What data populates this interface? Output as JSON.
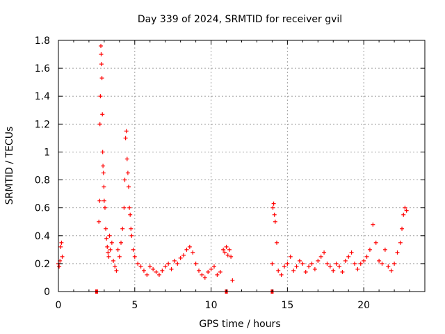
{
  "chart_data": {
    "type": "scatter",
    "title": "Day 339 of 2024, SRMTID for receiver gvil",
    "xlabel": "GPS time / hours",
    "ylabel": "SRMTID / TECUs",
    "xlim": [
      0,
      24
    ],
    "ylim": [
      0,
      1.8
    ],
    "xticks": [
      0,
      5,
      10,
      15,
      20
    ],
    "yticks": [
      0,
      0.2,
      0.4,
      0.6,
      0.8,
      1,
      1.2,
      1.4,
      1.6,
      1.8
    ],
    "xtick_labels": [
      "0",
      "5",
      "10",
      "15",
      "20"
    ],
    "ytick_labels": [
      "0",
      "0.2",
      "0.4",
      "0.6",
      "0.8",
      "1",
      "1.2",
      "1.4",
      "1.6",
      "1.8"
    ],
    "grid": true,
    "marker": "+",
    "marker_color": "#ff0000",
    "series": [
      {
        "name": "SRMTID",
        "x": [
          0.0,
          0.05,
          0.1,
          0.15,
          0.2,
          0.25,
          2.65,
          2.7,
          2.72,
          2.75,
          2.78,
          2.8,
          2.82,
          2.85,
          2.88,
          2.9,
          2.92,
          2.95,
          2.98,
          3.0,
          3.05,
          3.1,
          3.15,
          3.2,
          3.25,
          3.3,
          3.35,
          3.4,
          3.5,
          3.6,
          3.7,
          3.8,
          3.9,
          4.0,
          4.1,
          4.2,
          4.3,
          4.35,
          4.4,
          4.45,
          4.5,
          4.55,
          4.6,
          4.65,
          4.7,
          4.75,
          4.8,
          4.9,
          5.0,
          5.2,
          5.4,
          5.6,
          5.8,
          6.0,
          6.2,
          6.4,
          6.6,
          6.8,
          7.0,
          7.2,
          7.4,
          7.6,
          7.8,
          8.0,
          8.2,
          8.4,
          8.6,
          8.8,
          9.0,
          9.2,
          9.4,
          9.6,
          9.8,
          10.0,
          10.2,
          10.4,
          10.6,
          10.8,
          10.9,
          11.0,
          11.1,
          11.2,
          11.3,
          11.4,
          14.0,
          14.05,
          14.1,
          14.15,
          14.2,
          14.3,
          14.4,
          14.6,
          14.8,
          15.0,
          15.2,
          15.4,
          15.6,
          15.8,
          16.0,
          16.2,
          16.4,
          16.6,
          16.8,
          17.0,
          17.2,
          17.4,
          17.6,
          17.8,
          18.0,
          18.2,
          18.4,
          18.6,
          18.8,
          19.0,
          19.2,
          19.4,
          19.6,
          19.8,
          20.0,
          20.2,
          20.4,
          20.6,
          20.8,
          21.0,
          21.2,
          21.4,
          21.6,
          21.8,
          22.0,
          22.2,
          22.4,
          22.5,
          22.6,
          22.7,
          22.8
        ],
        "y": [
          0.2,
          0.18,
          0.22,
          0.32,
          0.35,
          0.25,
          0.5,
          0.65,
          1.2,
          1.4,
          1.76,
          1.7,
          1.63,
          1.53,
          1.27,
          1.0,
          0.9,
          0.85,
          0.75,
          0.65,
          0.6,
          0.45,
          0.38,
          0.32,
          0.28,
          0.25,
          0.4,
          0.3,
          0.35,
          0.22,
          0.18,
          0.15,
          0.3,
          0.25,
          0.35,
          0.45,
          0.6,
          0.8,
          1.1,
          1.15,
          0.95,
          0.85,
          0.75,
          0.6,
          0.55,
          0.45,
          0.4,
          0.3,
          0.25,
          0.2,
          0.18,
          0.15,
          0.12,
          0.18,
          0.16,
          0.14,
          0.12,
          0.15,
          0.18,
          0.2,
          0.16,
          0.22,
          0.2,
          0.24,
          0.26,
          0.3,
          0.32,
          0.28,
          0.2,
          0.15,
          0.12,
          0.1,
          0.14,
          0.16,
          0.18,
          0.12,
          0.14,
          0.3,
          0.28,
          0.32,
          0.26,
          0.3,
          0.25,
          0.08,
          0.2,
          0.6,
          0.63,
          0.55,
          0.5,
          0.35,
          0.15,
          0.12,
          0.18,
          0.2,
          0.25,
          0.15,
          0.18,
          0.22,
          0.2,
          0.14,
          0.18,
          0.2,
          0.16,
          0.22,
          0.25,
          0.28,
          0.2,
          0.18,
          0.15,
          0.2,
          0.18,
          0.14,
          0.22,
          0.25,
          0.28,
          0.2,
          0.16,
          0.2,
          0.22,
          0.25,
          0.3,
          0.48,
          0.35,
          0.22,
          0.2,
          0.3,
          0.18,
          0.15,
          0.2,
          0.28,
          0.35,
          0.45,
          0.55,
          0.6,
          0.58
        ]
      }
    ],
    "zero_markers_x": [
      2.5,
      11.0,
      14.0
    ]
  }
}
